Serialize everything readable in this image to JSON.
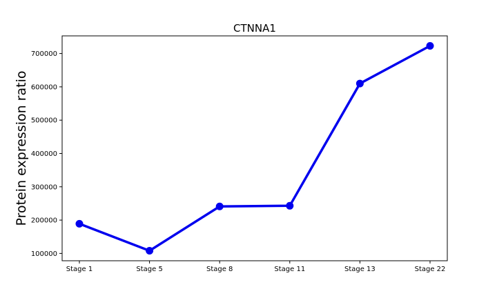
{
  "chart_data": {
    "type": "line",
    "title": "CTNNA1",
    "xlabel": "",
    "ylabel": "Protein expression ratio",
    "categories": [
      "Stage 1",
      "Stage 5",
      "Stage 8",
      "Stage 11",
      "Stage 13",
      "Stage 22"
    ],
    "series": [
      {
        "values": [
          189000,
          108000,
          241000,
          243000,
          610000,
          723000
        ],
        "color": "#0000ee"
      }
    ],
    "yticks": [
      100000,
      200000,
      300000,
      400000,
      500000,
      600000,
      700000
    ],
    "ytick_labels": [
      "100000",
      "200000",
      "300000",
      "400000",
      "500000",
      "600000",
      "700000"
    ],
    "ylim": [
      78000,
      753000
    ],
    "grid": false,
    "legend": "none"
  }
}
